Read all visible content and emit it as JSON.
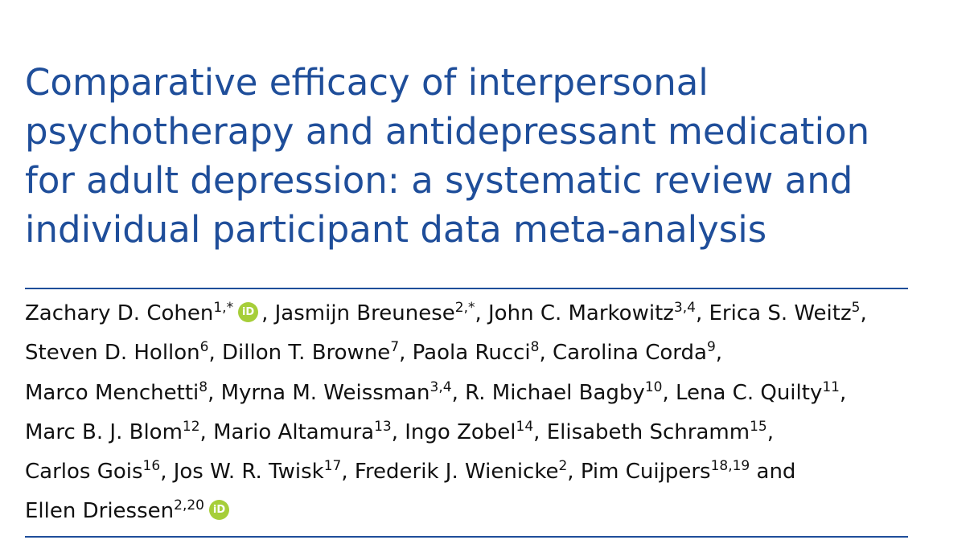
{
  "article": {
    "title_lines": [
      "Comparative efficacy of interpersonal",
      "psychotherapy and antidepressant medication",
      "for adult depression: a systematic review and",
      "individual participant data meta-analysis"
    ]
  },
  "authors": [
    {
      "name": "Zachary D. Cohen",
      "aff": "1,*",
      "orcid": true,
      "sep": ", "
    },
    {
      "name": "Jasmijn Breunese",
      "aff": "2,*",
      "sep": ", "
    },
    {
      "name": "John C. Markowitz",
      "aff": "3,4",
      "sep": ", "
    },
    {
      "name": "Erica S. Weitz",
      "aff": "5",
      "sep": ","
    },
    {
      "name": "Steven D. Hollon",
      "aff": "6",
      "sep": ", "
    },
    {
      "name": "Dillon T. Browne",
      "aff": "7",
      "sep": ", "
    },
    {
      "name": "Paola Rucci",
      "aff": "8",
      "sep": ", "
    },
    {
      "name": "Carolina Corda",
      "aff": "9",
      "sep": ","
    },
    {
      "name": "Marco Menchetti",
      "aff": "8",
      "sep": ", "
    },
    {
      "name": "Myrna M. Weissman",
      "aff": "3,4",
      "sep": ", "
    },
    {
      "name": "R. Michael Bagby",
      "aff": "10",
      "sep": ", "
    },
    {
      "name": "Lena C. Quilty",
      "aff": "11",
      "sep": ","
    },
    {
      "name": "Marc B. J. Blom",
      "aff": "12",
      "sep": ", "
    },
    {
      "name": "Mario Altamura",
      "aff": "13",
      "sep": ", "
    },
    {
      "name": "Ingo Zobel",
      "aff": "14",
      "sep": ", "
    },
    {
      "name": "Elisabeth Schramm",
      "aff": "15",
      "sep": ","
    },
    {
      "name": "Carlos Gois",
      "aff": "16",
      "sep": ", "
    },
    {
      "name": "Jos W. R. Twisk",
      "aff": "17",
      "sep": ", "
    },
    {
      "name": "Frederik J. Wienicke",
      "aff": "2",
      "sep": ", "
    },
    {
      "name": "Pim Cuijpers",
      "aff": "18,19",
      "sep": " and"
    },
    {
      "name": "Ellen Driessen",
      "aff": "2,20",
      "orcid": true,
      "sep": ""
    }
  ],
  "author_lines": [
    [
      0,
      1,
      2,
      3
    ],
    [
      4,
      5,
      6,
      7
    ],
    [
      8,
      9,
      10,
      11
    ],
    [
      12,
      13,
      14,
      15
    ],
    [
      16,
      17,
      18,
      19
    ],
    [
      20
    ]
  ],
  "orcid_icon": {
    "name": "orcid-icon",
    "text": "iD",
    "color": "#a6ce39"
  },
  "colors": {
    "title": "#1f4e9a",
    "rule": "#1f4e9a",
    "text": "#111111"
  }
}
